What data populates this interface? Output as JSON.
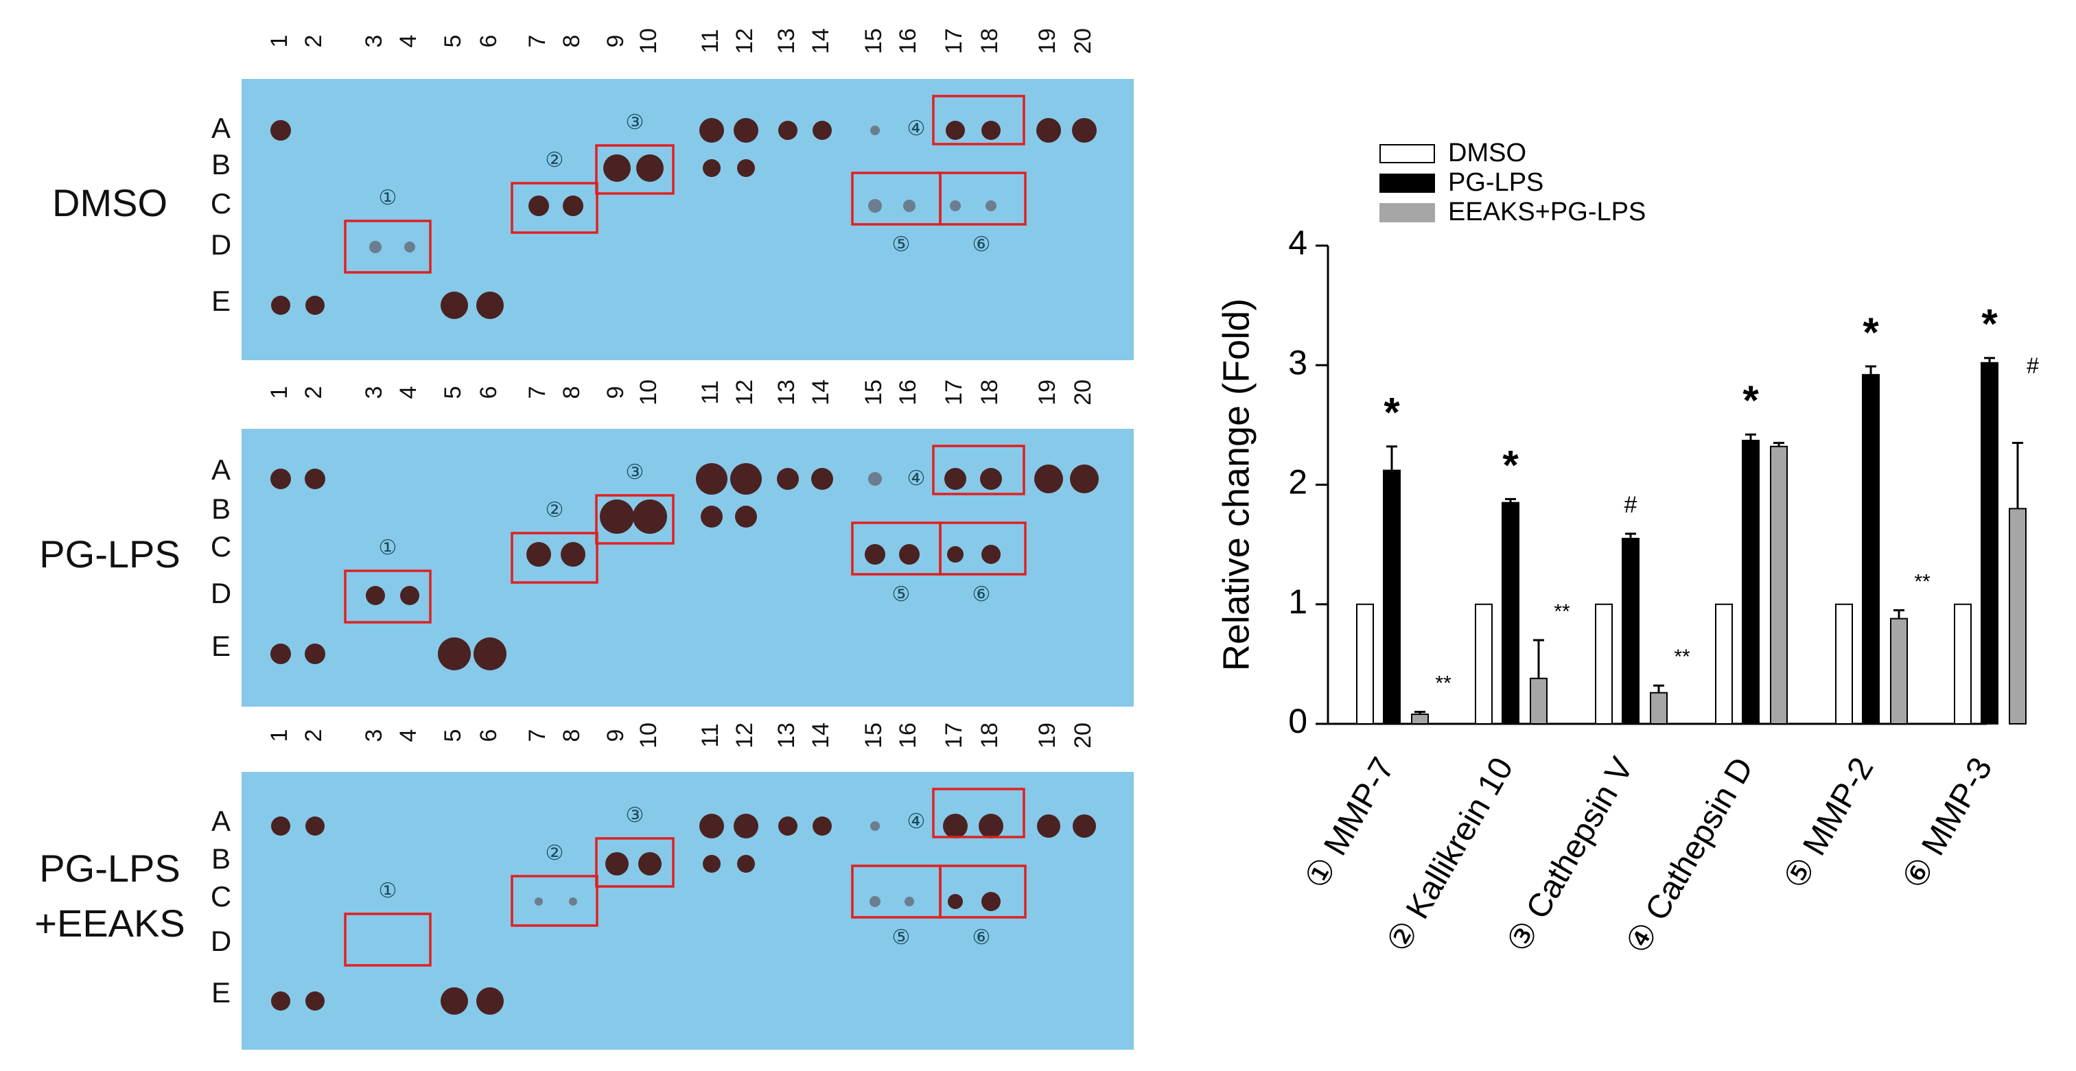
{
  "colors": {
    "blot_bg": "#87c9e9",
    "dot": "#4a2222",
    "box": "#e02020",
    "dmso_bar": "#ffffff",
    "pglps_bar": "#000000",
    "eeaks_bar": "#a6a6a6"
  },
  "blots": {
    "column_numbers": [
      "1",
      "2",
      "3",
      "4",
      "5",
      "6",
      "7",
      "8",
      "9",
      "10",
      "11",
      "12",
      "13",
      "14",
      "15",
      "16",
      "17",
      "18",
      "19",
      "20"
    ],
    "row_letters": [
      "A",
      "B",
      "C",
      "D",
      "E"
    ],
    "panels": [
      {
        "label_lines": [
          "DMSO"
        ]
      },
      {
        "label_lines": [
          "PG-LPS"
        ]
      },
      {
        "label_lines": [
          "PG-LPS",
          "+EEAKS"
        ]
      }
    ],
    "box_markers": [
      "①",
      "②",
      "③",
      "④",
      "⑤",
      "⑥"
    ]
  },
  "chart_data": {
    "type": "bar",
    "title": "",
    "xlabel": "",
    "ylabel": "Relative change (Fold)",
    "ylim": [
      0,
      4
    ],
    "yticks": [
      "0",
      "1",
      "2",
      "3",
      "4"
    ],
    "categories": [
      "① MMP-7",
      "② Kallikrein 10",
      "③ Cathepsin V",
      "④ Cathepsin D",
      "⑤ MMP-2",
      "⑥ MMP-3"
    ],
    "legend_position": "top-left",
    "series": [
      {
        "name": "DMSO",
        "values": [
          1,
          1,
          1,
          1,
          1,
          1
        ],
        "errors": [
          0,
          0,
          0,
          0,
          0,
          0
        ]
      },
      {
        "name": "PG-LPS",
        "values": [
          2.12,
          1.85,
          1.55,
          2.37,
          2.92,
          3.02
        ],
        "errors": [
          0.2,
          0.03,
          0.04,
          0.05,
          0.07,
          0.04
        ]
      },
      {
        "name": "EEAKS+PG-LPS",
        "values": [
          0.08,
          0.38,
          0.26,
          2.32,
          0.88,
          1.8
        ],
        "errors": [
          0.02,
          0.32,
          0.06,
          0.03,
          0.07,
          0.55
        ]
      }
    ],
    "annotations": {
      "pglps": [
        "*",
        "*",
        "#",
        "*",
        "*",
        "*"
      ],
      "eeaks": [
        "**",
        "**",
        "**",
        "",
        "**",
        "#"
      ]
    }
  }
}
